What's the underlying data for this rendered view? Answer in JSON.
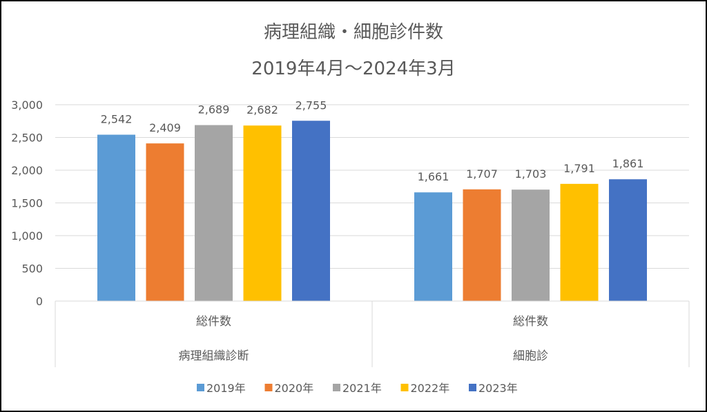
{
  "chart_data": {
    "type": "bar",
    "title": "病理組織・細胞診件数",
    "subtitle": "2019年4月～2024年3月",
    "categories": [
      {
        "label": "総件数",
        "group": "病理組織診断"
      },
      {
        "label": "総件数",
        "group": "細胞診"
      }
    ],
    "series": [
      {
        "name": "2019年",
        "color": "#5B9BD5",
        "values": [
          2542,
          1661
        ]
      },
      {
        "name": "2020年",
        "color": "#ED7D31",
        "values": [
          2409,
          1707
        ]
      },
      {
        "name": "2021年",
        "color": "#A5A5A5",
        "values": [
          2689,
          1703
        ]
      },
      {
        "name": "2022年",
        "color": "#FFC000",
        "values": [
          2682,
          1791
        ]
      },
      {
        "name": "2023年",
        "color": "#4472C4",
        "values": [
          2755,
          1861
        ]
      }
    ],
    "ylim": [
      0,
      3000
    ],
    "yticks": [
      0,
      500,
      1000,
      1500,
      2000,
      2500,
      3000
    ],
    "ytick_labels": [
      "0",
      "500",
      "1,000",
      "1,500",
      "2,000",
      "2,500",
      "3,000"
    ],
    "grid": true,
    "legend": "bottom",
    "xlabel": "",
    "ylabel": ""
  }
}
